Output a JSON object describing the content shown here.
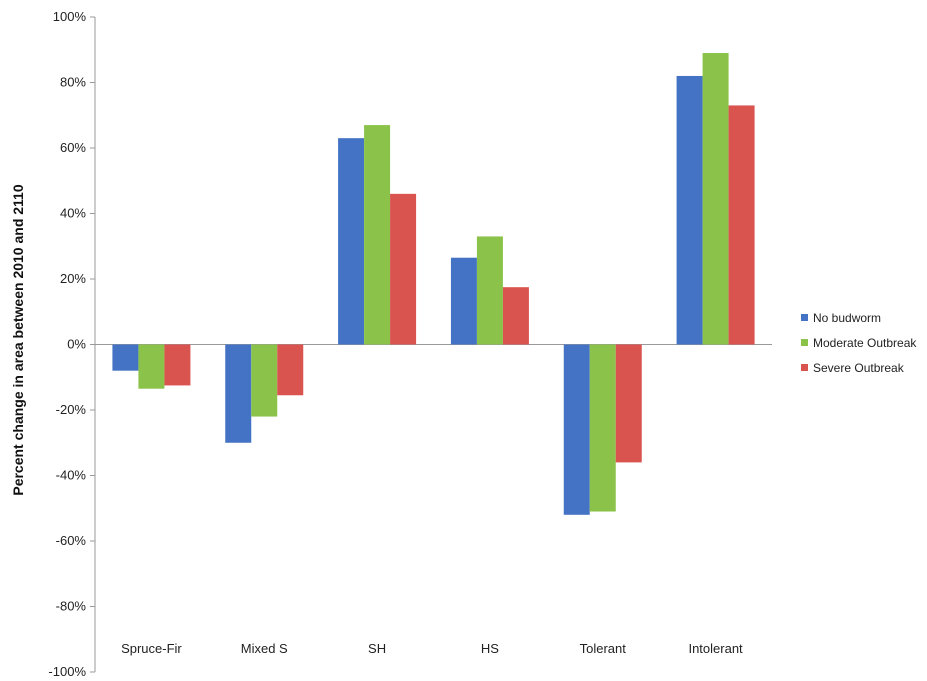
{
  "chart_data": {
    "type": "bar",
    "title": "",
    "xlabel": "",
    "ylabel": "Percent change in area between 2010 and 2110",
    "categories": [
      "Spruce-Fir",
      "Mixed S",
      "SH",
      "HS",
      "Tolerant",
      "Intolerant"
    ],
    "series": [
      {
        "name": "No budworm",
        "color": "#4472C4",
        "values": [
          -8,
          -30,
          63,
          26.5,
          -52,
          82
        ]
      },
      {
        "name": "Moderate Outbreak",
        "color": "#8BC34A",
        "values": [
          -13.5,
          -22,
          67,
          33,
          -51,
          89
        ]
      },
      {
        "name": "Severe Outbreak",
        "color": "#D9534F",
        "values": [
          -12.5,
          -15.5,
          46,
          17.5,
          -36,
          73
        ]
      }
    ],
    "ylim": [
      -100,
      100
    ],
    "yticks": [
      -100,
      -80,
      -60,
      -40,
      -20,
      0,
      20,
      40,
      60,
      80,
      100
    ],
    "ytick_labels": [
      "-100%",
      "-80%",
      "-60%",
      "-40%",
      "-20%",
      "0%",
      "20%",
      "40%",
      "60%",
      "80%",
      "100%"
    ],
    "grid": false,
    "legend_position": "right"
  }
}
